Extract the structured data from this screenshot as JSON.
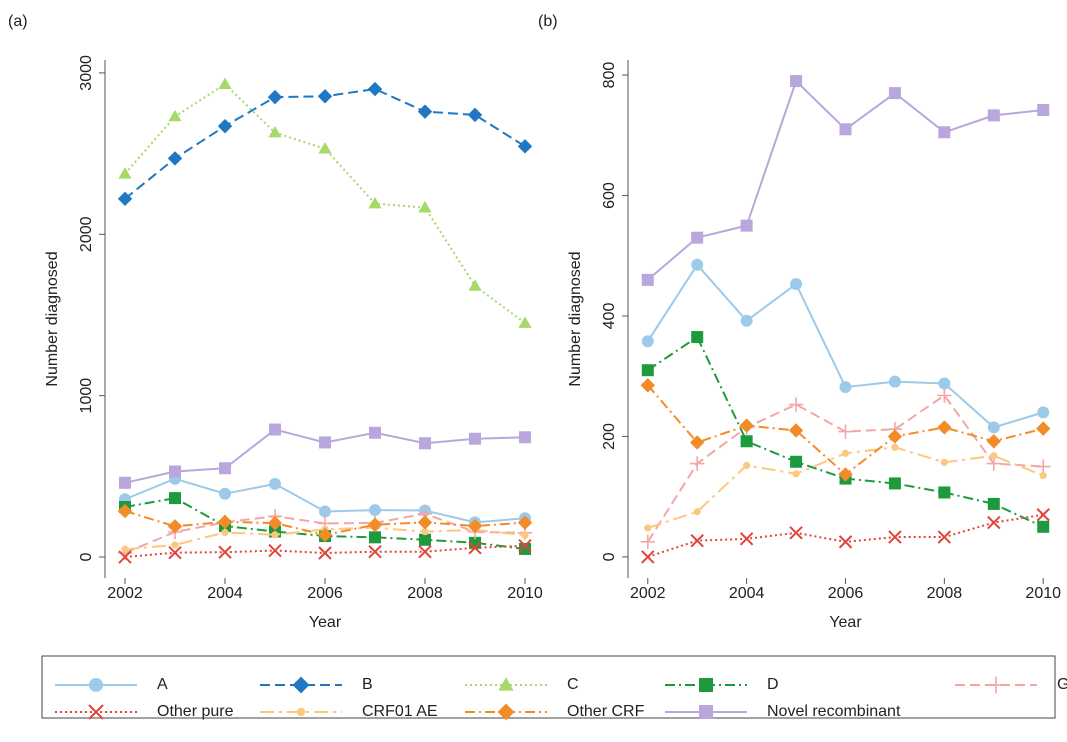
{
  "chart_data": [
    {
      "type": "line",
      "label": "(a)",
      "x_label": "Year",
      "y_label": "Number diagnosed",
      "x": [
        2002,
        2003,
        2004,
        2005,
        2006,
        2007,
        2008,
        2009,
        2010
      ],
      "xlim": [
        2001.6,
        2010.4
      ],
      "xticks": [
        2002,
        2004,
        2006,
        2008,
        2010
      ],
      "ylim": [
        -130,
        3080
      ],
      "yticks": [
        0,
        1000,
        2000,
        3000
      ],
      "series": [
        {
          "name": "A",
          "color": "#9ecae9",
          "dash": "solid",
          "marker": "circle",
          "values": [
            358,
            485,
            392,
            453,
            282,
            291,
            288,
            215,
            240
          ]
        },
        {
          "name": "B",
          "color": "#1f78c1",
          "dash": "dashed",
          "marker": "diamond",
          "values": [
            2220,
            2470,
            2670,
            2850,
            2855,
            2900,
            2760,
            2740,
            2545
          ]
        },
        {
          "name": "C",
          "color": "#a6d96a",
          "dash": "dotted",
          "marker": "triangle",
          "values": [
            2375,
            2730,
            2930,
            2630,
            2530,
            2190,
            2165,
            1680,
            1450
          ]
        },
        {
          "name": "D",
          "color": "#1e9a3e",
          "dash": "dashdot",
          "marker": "square",
          "values": [
            310,
            365,
            192,
            158,
            130,
            122,
            107,
            88,
            50
          ]
        },
        {
          "name": "G",
          "color": "#f4a6a6",
          "dash": "dashed",
          "marker": "plus",
          "values": [
            25,
            155,
            215,
            253,
            208,
            212,
            268,
            155,
            150
          ]
        },
        {
          "name": "Other pure",
          "color": "#e0443a",
          "dash": "dotted",
          "marker": "cross",
          "values": [
            0,
            27,
            30,
            40,
            25,
            33,
            33,
            57,
            70
          ]
        },
        {
          "name": "CRF01 AE",
          "color": "#fdc77f",
          "dash": "longdash",
          "marker": "dot",
          "values": [
            48,
            75,
            152,
            138,
            172,
            182,
            157,
            168,
            135
          ]
        },
        {
          "name": "Other CRF",
          "color": "#f28c28",
          "dash": "dashdot",
          "marker": "diamond",
          "values": [
            285,
            190,
            218,
            210,
            137,
            200,
            215,
            192,
            213
          ]
        },
        {
          "name": "Novel recombinant",
          "color": "#b9a6dc",
          "dash": "solid",
          "marker": "square",
          "values": [
            460,
            530,
            550,
            790,
            710,
            770,
            705,
            733,
            742
          ]
        }
      ]
    },
    {
      "type": "line",
      "label": "(b)",
      "x_label": "Year",
      "y_label": "Number diagnosed",
      "x": [
        2002,
        2003,
        2004,
        2005,
        2006,
        2007,
        2008,
        2009,
        2010
      ],
      "xlim": [
        2001.6,
        2010.4
      ],
      "xticks": [
        2002,
        2004,
        2006,
        2008,
        2010
      ],
      "ylim": [
        -35,
        825
      ],
      "yticks": [
        0,
        200,
        400,
        600,
        800
      ],
      "series": [
        {
          "name": "A",
          "color": "#9ecae9",
          "dash": "solid",
          "marker": "circle",
          "values": [
            358,
            485,
            392,
            453,
            282,
            291,
            288,
            215,
            240
          ]
        },
        {
          "name": "D",
          "color": "#1e9a3e",
          "dash": "dashdot",
          "marker": "square",
          "values": [
            310,
            365,
            192,
            158,
            130,
            122,
            107,
            88,
            50
          ]
        },
        {
          "name": "G",
          "color": "#f4a6a6",
          "dash": "dashed",
          "marker": "plus",
          "values": [
            25,
            155,
            215,
            253,
            208,
            212,
            268,
            155,
            150
          ]
        },
        {
          "name": "Other pure",
          "color": "#e0443a",
          "dash": "dotted",
          "marker": "cross",
          "values": [
            0,
            27,
            30,
            40,
            25,
            33,
            33,
            57,
            70
          ]
        },
        {
          "name": "CRF01 AE",
          "color": "#fdc77f",
          "dash": "longdash",
          "marker": "dot",
          "values": [
            48,
            75,
            152,
            138,
            172,
            182,
            157,
            168,
            135
          ]
        },
        {
          "name": "Other CRF",
          "color": "#f28c28",
          "dash": "dashdot",
          "marker": "diamond",
          "values": [
            285,
            190,
            218,
            210,
            137,
            200,
            215,
            192,
            213
          ]
        },
        {
          "name": "Novel recombinant",
          "color": "#b9a6dc",
          "dash": "solid",
          "marker": "square",
          "values": [
            460,
            530,
            550,
            790,
            710,
            770,
            705,
            733,
            742
          ]
        }
      ]
    }
  ]
}
